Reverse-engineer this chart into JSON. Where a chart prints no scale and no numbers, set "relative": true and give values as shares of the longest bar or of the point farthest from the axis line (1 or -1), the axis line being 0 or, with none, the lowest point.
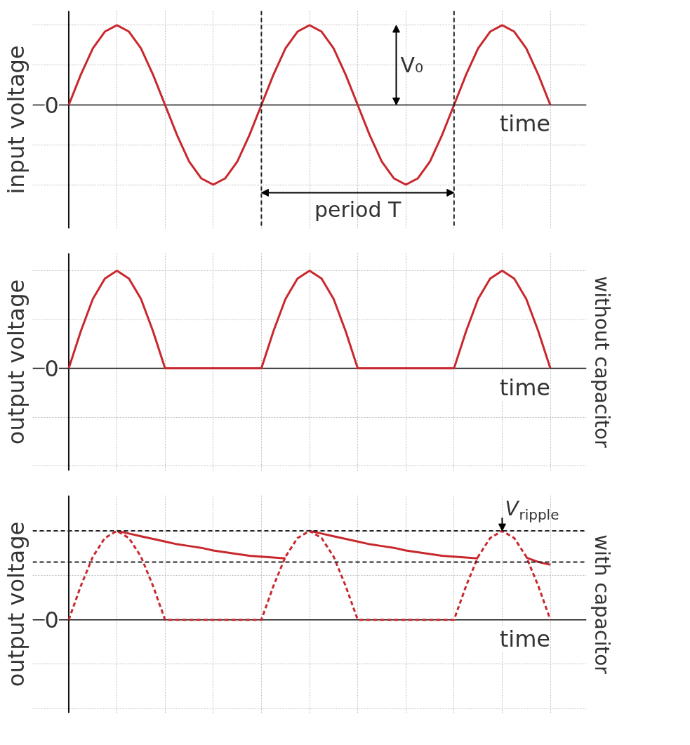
{
  "chart_data": [
    {
      "type": "line",
      "relative": true,
      "ylabel": "input voltage",
      "xlabel": "time",
      "grid": true,
      "categories": [
        null,
        null,
        null,
        null,
        null,
        null,
        null,
        null,
        null,
        null,
        null,
        null,
        null,
        null,
        null,
        null,
        null,
        null,
        null,
        null,
        null,
        null,
        null,
        null,
        null,
        null,
        null,
        null,
        null,
        null,
        null,
        null,
        null,
        null,
        null,
        null,
        null,
        null,
        null,
        null,
        null
      ],
      "series": [
        {
          "color": "#c8282d",
          "line_style": "solid",
          "values": [
            0,
            0.38,
            0.71,
            0.92,
            1,
            0.92,
            0.71,
            0.38,
            0,
            -0.38,
            -0.71,
            -0.92,
            -1,
            -0.92,
            -0.71,
            -0.38,
            0,
            0.38,
            0.71,
            0.92,
            1,
            0.92,
            0.71,
            0.38,
            0,
            -0.38,
            -0.71,
            -0.92,
            -1,
            -0.92,
            -0.71,
            -0.38,
            0,
            0.38,
            0.71,
            0.92,
            1,
            0.92,
            0.71,
            0.38,
            0
          ]
        }
      ],
      "annotations": [
        "0",
        "V₀",
        "period T"
      ]
    },
    {
      "type": "line",
      "relative": true,
      "ylabel": "output voltage",
      "xlabel": "time",
      "grid": true,
      "categories": [
        null,
        null,
        null,
        null,
        null,
        null,
        null,
        null,
        null,
        null,
        null,
        null,
        null,
        null,
        null,
        null,
        null,
        null,
        null,
        null,
        null,
        null,
        null,
        null,
        null,
        null,
        null,
        null,
        null,
        null,
        null,
        null,
        null,
        null,
        null,
        null,
        null,
        null,
        null,
        null,
        null
      ],
      "series": [
        {
          "color": "#c8282d",
          "line_style": "solid",
          "values": [
            0,
            0.38,
            0.71,
            0.92,
            1,
            0.92,
            0.71,
            0.38,
            0,
            0,
            0,
            0,
            0,
            0,
            0,
            0,
            0,
            0.38,
            0.71,
            0.92,
            1,
            0.92,
            0.71,
            0.38,
            0,
            0,
            0,
            0,
            0,
            0,
            0,
            0,
            0,
            0.38,
            0.71,
            0.92,
            1,
            0.92,
            0.71,
            0.38,
            0
          ]
        }
      ],
      "annotations": [
        "0",
        "without capacitor"
      ]
    },
    {
      "type": "line",
      "relative": true,
      "ylabel": "output voltage",
      "xlabel": "time",
      "grid": true,
      "categories": [
        null,
        null,
        null,
        null,
        null,
        null,
        null,
        null,
        null,
        null,
        null,
        null,
        null,
        null,
        null,
        null,
        null,
        null,
        null,
        null,
        null,
        null,
        null,
        null,
        null,
        null,
        null,
        null,
        null,
        null,
        null,
        null,
        null,
        null,
        null,
        null,
        null,
        null,
        null,
        null,
        null
      ],
      "series": [
        {
          "color": "#c8282d",
          "line_style": "dashed",
          "values": [
            0,
            0.38,
            0.71,
            0.92,
            1,
            0.92,
            0.71,
            0.38,
            0,
            0,
            0,
            0,
            0,
            0,
            0,
            0,
            0,
            0.38,
            0.71,
            0.92,
            1,
            0.92,
            0.71,
            0.38,
            0,
            0,
            0,
            0,
            0,
            0,
            0,
            0,
            0,
            0.38,
            0.71,
            0.92,
            1,
            0.92,
            0.71,
            0.38,
            0
          ]
        },
        {
          "color": "#c8282d",
          "line_style": "solid",
          "values": [
            null,
            null,
            null,
            null,
            1,
            0.97,
            0.94,
            0.91,
            0.88,
            0.85,
            0.83,
            0.81,
            0.78,
            0.76,
            0.74,
            0.72,
            0.71,
            0.7,
            0.69,
            null,
            1,
            0.97,
            0.94,
            0.91,
            0.88,
            0.85,
            0.83,
            0.81,
            0.78,
            0.76,
            0.74,
            0.72,
            0.71,
            0.7,
            0.69,
            null,
            null,
            null,
            0.7,
            0.65,
            0.62
          ]
        }
      ],
      "ref_lines": [
        {
          "axis": "y",
          "value": 1,
          "color": "#222222",
          "line_style": "dashed"
        },
        {
          "axis": "y",
          "value": 0.65,
          "color": "#222222",
          "line_style": "dashed"
        }
      ],
      "annotations": [
        "0",
        "V$_{ripple}$",
        "with capacitor"
      ]
    }
  ]
}
